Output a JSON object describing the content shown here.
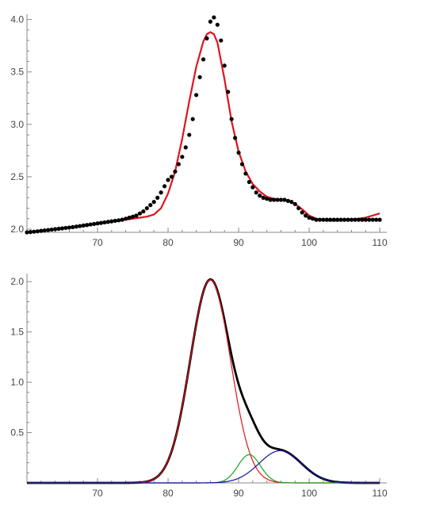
{
  "chart_data": [
    {
      "type": "scatter",
      "title": "",
      "xlabel": "",
      "ylabel": "",
      "xlim": [
        60,
        111
      ],
      "ylim": [
        1.97,
        4.05
      ],
      "y_axis_at_x": 60,
      "x_axis_at_y": 1.97,
      "x_ticks": [
        70,
        80,
        90,
        100,
        110
      ],
      "x_tick_labels": [
        "70",
        "80",
        "90",
        "100",
        "110"
      ],
      "y_ticks": [
        2.0,
        2.5,
        3.0,
        3.5,
        4.0
      ],
      "y_tick_labels": [
        "2.0",
        "2.5",
        "3.0",
        "3.5",
        "4.0"
      ],
      "grid": false,
      "series": [
        {
          "role": "data points",
          "mark": "dot",
          "color": "#000000",
          "x": [
            60,
            60.5,
            61,
            61.5,
            62,
            62.5,
            63,
            63.5,
            64,
            64.5,
            65,
            65.5,
            66,
            66.5,
            67,
            67.5,
            68,
            68.5,
            69,
            69.5,
            70,
            70.5,
            71,
            71.5,
            72,
            72.5,
            73,
            73.5,
            74,
            74.5,
            75,
            75.5,
            76,
            76.5,
            77,
            77.5,
            78,
            78.5,
            79,
            79.5,
            80,
            80.5,
            81,
            81.5,
            82,
            82.5,
            83,
            83.5,
            84,
            84.5,
            85,
            85.5,
            86,
            86.5,
            87,
            87.5,
            88,
            88.5,
            89,
            89.5,
            90,
            90.5,
            91,
            91.5,
            92,
            92.5,
            93,
            93.5,
            94,
            94.5,
            95,
            95.5,
            96,
            96.5,
            97,
            97.5,
            98,
            98.5,
            99,
            99.5,
            100,
            100.5,
            101,
            101.5,
            102,
            102.5,
            103,
            103.5,
            104,
            104.5,
            105,
            105.5,
            106,
            106.5,
            107,
            107.5,
            108,
            108.5,
            109,
            109.5,
            110
          ],
          "y": [
            1.97,
            1.973,
            1.976,
            1.98,
            1.984,
            1.988,
            1.992,
            1.996,
            2.0,
            2.004,
            2.008,
            2.012,
            2.016,
            2.02,
            2.025,
            2.03,
            2.035,
            2.04,
            2.045,
            2.05,
            2.055,
            2.06,
            2.065,
            2.07,
            2.075,
            2.08,
            2.085,
            2.09,
            2.1,
            2.11,
            2.12,
            2.13,
            2.15,
            2.17,
            2.2,
            2.23,
            2.26,
            2.3,
            2.35,
            2.41,
            2.47,
            2.5,
            2.55,
            2.62,
            2.69,
            2.78,
            2.9,
            3.05,
            3.28,
            3.45,
            3.62,
            3.82,
            3.98,
            4.02,
            3.95,
            3.8,
            3.56,
            3.31,
            3.05,
            2.87,
            2.73,
            2.62,
            2.53,
            2.45,
            2.4,
            2.35,
            2.32,
            2.3,
            2.29,
            2.28,
            2.28,
            2.28,
            2.28,
            2.28,
            2.27,
            2.26,
            2.24,
            2.2,
            2.16,
            2.13,
            2.11,
            2.1,
            2.09,
            2.09,
            2.09,
            2.09,
            2.09,
            2.09,
            2.09,
            2.09,
            2.09,
            2.09,
            2.09,
            2.09,
            2.09,
            2.09,
            2.09,
            2.09,
            2.09,
            2.09,
            2.09
          ]
        },
        {
          "role": "fit",
          "mark": "line",
          "color": "#e0141e",
          "x": [
            60,
            62,
            64,
            66,
            68,
            70,
            72,
            74,
            76,
            77,
            78,
            79,
            80,
            81,
            82,
            83,
            84,
            85,
            85.5,
            86,
            86.5,
            87,
            88,
            89,
            90,
            91,
            92,
            93,
            94,
            95,
            96,
            97,
            98,
            99,
            100,
            101,
            102,
            103,
            104,
            106,
            108,
            110
          ],
          "y": [
            1.97,
            1.985,
            2.0,
            2.015,
            2.03,
            2.05,
            2.07,
            2.09,
            2.11,
            2.12,
            2.14,
            2.2,
            2.34,
            2.55,
            2.86,
            3.22,
            3.55,
            3.79,
            3.86,
            3.88,
            3.86,
            3.78,
            3.43,
            3.03,
            2.74,
            2.55,
            2.43,
            2.36,
            2.31,
            2.29,
            2.28,
            2.27,
            2.24,
            2.19,
            2.13,
            2.1,
            2.085,
            2.08,
            2.08,
            2.09,
            2.11,
            2.15
          ]
        }
      ]
    },
    {
      "type": "line",
      "title": "",
      "xlabel": "",
      "ylabel": "",
      "xlim": [
        60,
        111
      ],
      "ylim": [
        0,
        2.08
      ],
      "y_axis_at_x": 60,
      "x_axis_at_y": 0,
      "x_ticks": [
        70,
        80,
        90,
        100,
        110
      ],
      "x_tick_labels": [
        "70",
        "80",
        "90",
        "100",
        "110"
      ],
      "y_ticks": [
        0.5,
        1.0,
        1.5,
        2.0
      ],
      "y_tick_labels": [
        "0.5",
        "1.0",
        "1.5",
        "2.0"
      ],
      "grid": false,
      "series": [
        {
          "role": "component 1",
          "color": "#e0141e",
          "peak_x": 86.0,
          "peak_y": 2.02,
          "sigma": 2.85
        },
        {
          "role": "component 2",
          "color": "#1ca01c",
          "peak_x": 91.5,
          "peak_y": 0.28,
          "sigma": 1.6
        },
        {
          "role": "component 3",
          "color": "#1515a0",
          "peak_x": 95.9,
          "peak_y": 0.32,
          "sigma": 3.0
        },
        {
          "role": "sum",
          "color": "#000000",
          "components": [
            0,
            1,
            2
          ]
        }
      ]
    }
  ]
}
